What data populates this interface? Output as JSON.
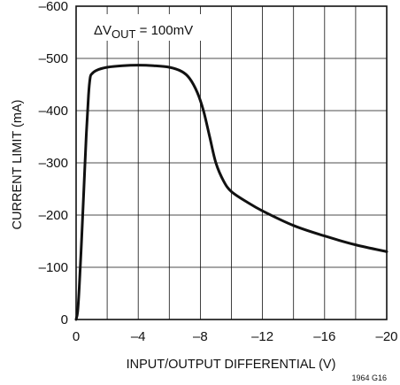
{
  "chart_data": {
    "type": "line",
    "title": "",
    "xlabel": "INPUT/OUTPUT DIFFERENTIAL (V)",
    "ylabel": "CURRENT LIMIT (mA)",
    "xlim": [
      0,
      -20
    ],
    "ylim": [
      0,
      -600
    ],
    "x_ticks": [
      0,
      -4,
      -8,
      -12,
      -16,
      -20
    ],
    "x_tick_labels": [
      "0",
      "–4",
      "–8",
      "–12",
      "–16",
      "–20"
    ],
    "y_ticks": [
      0,
      -100,
      -200,
      -300,
      -400,
      -500,
      -600
    ],
    "y_tick_labels": [
      "0",
      "–100",
      "–200",
      "–300",
      "–400",
      "–500",
      "–600"
    ],
    "x_grid_step": -2,
    "y_grid_step": -100,
    "grid": true,
    "annotation": {
      "prefix": "ΔV",
      "subscript": "OUT",
      "suffix": " = 100mV"
    },
    "figure_id": "1964 G16",
    "series": [
      {
        "values": [
          [
            0,
            0
          ],
          [
            -0.1,
            -15
          ],
          [
            -0.2,
            -60
          ],
          [
            -0.35,
            -150
          ],
          [
            -0.5,
            -250
          ],
          [
            -0.65,
            -350
          ],
          [
            -0.8,
            -430
          ],
          [
            -0.9,
            -462
          ],
          [
            -1.0,
            -470
          ],
          [
            -1.3,
            -477
          ],
          [
            -2.0,
            -483
          ],
          [
            -3.0,
            -486
          ],
          [
            -4.0,
            -487
          ],
          [
            -5.0,
            -486
          ],
          [
            -6.0,
            -483
          ],
          [
            -6.8,
            -475
          ],
          [
            -7.3,
            -462
          ],
          [
            -7.8,
            -435
          ],
          [
            -8.2,
            -400
          ],
          [
            -8.6,
            -350
          ],
          [
            -9.0,
            -300
          ],
          [
            -9.5,
            -265
          ],
          [
            -10.0,
            -245
          ],
          [
            -11.0,
            -225
          ],
          [
            -12.0,
            -208
          ],
          [
            -14.0,
            -180
          ],
          [
            -16.0,
            -160
          ],
          [
            -18.0,
            -143
          ],
          [
            -20.0,
            -130
          ]
        ]
      }
    ]
  }
}
